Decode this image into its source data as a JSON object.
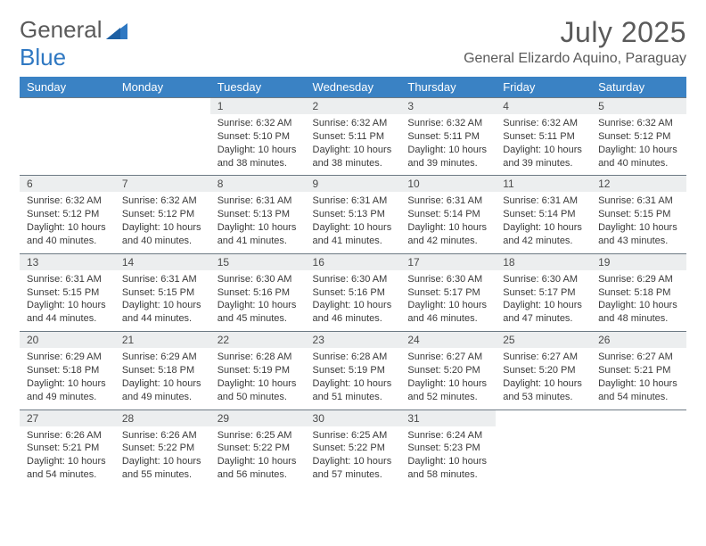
{
  "brand": {
    "word1": "General",
    "word2": "Blue"
  },
  "title": "July 2025",
  "location": "General Elizardo Aquino, Paraguay",
  "colors": {
    "header_bg": "#3a82c4",
    "header_text": "#ffffff",
    "daynum_bg": "#eceeef",
    "daynum_border": "#6d7a84",
    "body_text": "#3a3a3a",
    "title_text": "#5a5a5a",
    "brand_blue": "#2f78c2"
  },
  "day_headers": [
    "Sunday",
    "Monday",
    "Tuesday",
    "Wednesday",
    "Thursday",
    "Friday",
    "Saturday"
  ],
  "weeks": [
    [
      null,
      null,
      {
        "n": "1",
        "sr": "6:32 AM",
        "ss": "5:10 PM",
        "dl": "10 hours and 38 minutes."
      },
      {
        "n": "2",
        "sr": "6:32 AM",
        "ss": "5:11 PM",
        "dl": "10 hours and 38 minutes."
      },
      {
        "n": "3",
        "sr": "6:32 AM",
        "ss": "5:11 PM",
        "dl": "10 hours and 39 minutes."
      },
      {
        "n": "4",
        "sr": "6:32 AM",
        "ss": "5:11 PM",
        "dl": "10 hours and 39 minutes."
      },
      {
        "n": "5",
        "sr": "6:32 AM",
        "ss": "5:12 PM",
        "dl": "10 hours and 40 minutes."
      }
    ],
    [
      {
        "n": "6",
        "sr": "6:32 AM",
        "ss": "5:12 PM",
        "dl": "10 hours and 40 minutes."
      },
      {
        "n": "7",
        "sr": "6:32 AM",
        "ss": "5:12 PM",
        "dl": "10 hours and 40 minutes."
      },
      {
        "n": "8",
        "sr": "6:31 AM",
        "ss": "5:13 PM",
        "dl": "10 hours and 41 minutes."
      },
      {
        "n": "9",
        "sr": "6:31 AM",
        "ss": "5:13 PM",
        "dl": "10 hours and 41 minutes."
      },
      {
        "n": "10",
        "sr": "6:31 AM",
        "ss": "5:14 PM",
        "dl": "10 hours and 42 minutes."
      },
      {
        "n": "11",
        "sr": "6:31 AM",
        "ss": "5:14 PM",
        "dl": "10 hours and 42 minutes."
      },
      {
        "n": "12",
        "sr": "6:31 AM",
        "ss": "5:15 PM",
        "dl": "10 hours and 43 minutes."
      }
    ],
    [
      {
        "n": "13",
        "sr": "6:31 AM",
        "ss": "5:15 PM",
        "dl": "10 hours and 44 minutes."
      },
      {
        "n": "14",
        "sr": "6:31 AM",
        "ss": "5:15 PM",
        "dl": "10 hours and 44 minutes."
      },
      {
        "n": "15",
        "sr": "6:30 AM",
        "ss": "5:16 PM",
        "dl": "10 hours and 45 minutes."
      },
      {
        "n": "16",
        "sr": "6:30 AM",
        "ss": "5:16 PM",
        "dl": "10 hours and 46 minutes."
      },
      {
        "n": "17",
        "sr": "6:30 AM",
        "ss": "5:17 PM",
        "dl": "10 hours and 46 minutes."
      },
      {
        "n": "18",
        "sr": "6:30 AM",
        "ss": "5:17 PM",
        "dl": "10 hours and 47 minutes."
      },
      {
        "n": "19",
        "sr": "6:29 AM",
        "ss": "5:18 PM",
        "dl": "10 hours and 48 minutes."
      }
    ],
    [
      {
        "n": "20",
        "sr": "6:29 AM",
        "ss": "5:18 PM",
        "dl": "10 hours and 49 minutes."
      },
      {
        "n": "21",
        "sr": "6:29 AM",
        "ss": "5:18 PM",
        "dl": "10 hours and 49 minutes."
      },
      {
        "n": "22",
        "sr": "6:28 AM",
        "ss": "5:19 PM",
        "dl": "10 hours and 50 minutes."
      },
      {
        "n": "23",
        "sr": "6:28 AM",
        "ss": "5:19 PM",
        "dl": "10 hours and 51 minutes."
      },
      {
        "n": "24",
        "sr": "6:27 AM",
        "ss": "5:20 PM",
        "dl": "10 hours and 52 minutes."
      },
      {
        "n": "25",
        "sr": "6:27 AM",
        "ss": "5:20 PM",
        "dl": "10 hours and 53 minutes."
      },
      {
        "n": "26",
        "sr": "6:27 AM",
        "ss": "5:21 PM",
        "dl": "10 hours and 54 minutes."
      }
    ],
    [
      {
        "n": "27",
        "sr": "6:26 AM",
        "ss": "5:21 PM",
        "dl": "10 hours and 54 minutes."
      },
      {
        "n": "28",
        "sr": "6:26 AM",
        "ss": "5:22 PM",
        "dl": "10 hours and 55 minutes."
      },
      {
        "n": "29",
        "sr": "6:25 AM",
        "ss": "5:22 PM",
        "dl": "10 hours and 56 minutes."
      },
      {
        "n": "30",
        "sr": "6:25 AM",
        "ss": "5:22 PM",
        "dl": "10 hours and 57 minutes."
      },
      {
        "n": "31",
        "sr": "6:24 AM",
        "ss": "5:23 PM",
        "dl": "10 hours and 58 minutes."
      },
      null,
      null
    ]
  ],
  "labels": {
    "sunrise": "Sunrise: ",
    "sunset": "Sunset: ",
    "daylight": "Daylight: "
  }
}
